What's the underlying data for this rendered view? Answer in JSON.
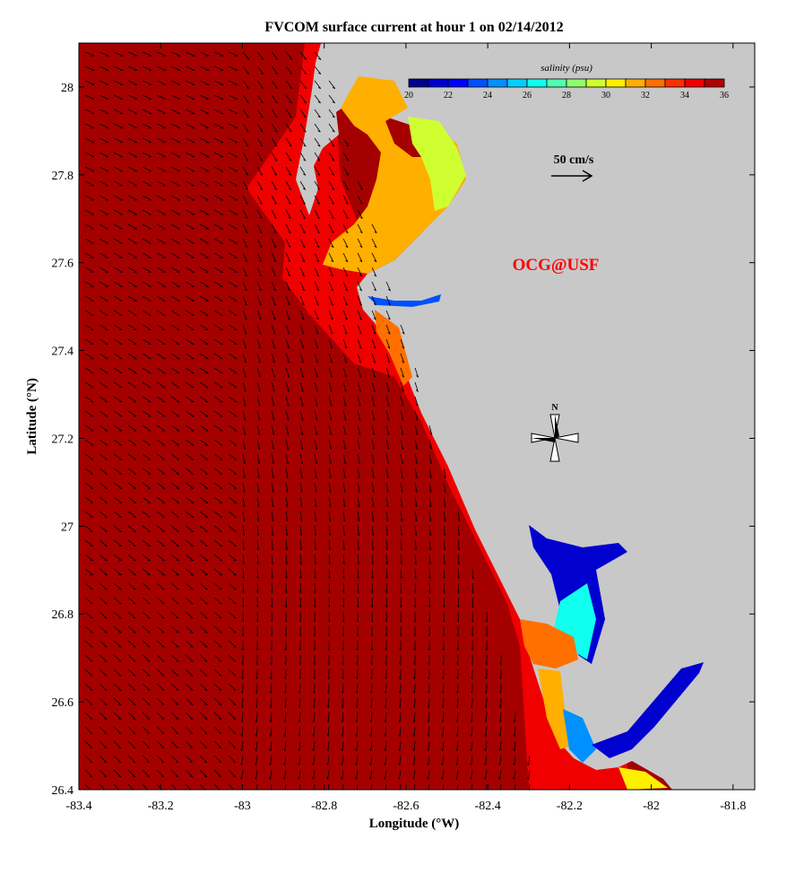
{
  "title": "FVCOM surface current at hour 1 on 02/14/2012",
  "xlabel": "Longitude (°W)",
  "ylabel": "Latitude (°N)",
  "x_ticks": [
    "-83.4",
    "-83.2",
    "-83",
    "-82.8",
    "-82.6",
    "-82.4",
    "-82.2",
    "-82",
    "-81.8"
  ],
  "x_tick_values": [
    -83.4,
    -83.2,
    -83.0,
    -82.8,
    -82.6,
    -82.4,
    -82.2,
    -82.0,
    -81.8
  ],
  "y_ticks": [
    "28",
    "27.8",
    "27.6",
    "27.4",
    "27.2",
    "27",
    "26.8",
    "26.6",
    "26.4"
  ],
  "y_tick_values": [
    28.0,
    27.8,
    27.6,
    27.4,
    27.2,
    27.0,
    26.8,
    26.6,
    26.4
  ],
  "lon_range": [
    -83.4,
    -81.747
  ],
  "lat_range": [
    26.4,
    28.1
  ],
  "colorbar": {
    "label": "salinity (psu)",
    "ticks": [
      "20",
      "22",
      "24",
      "26",
      "28",
      "30",
      "32",
      "34",
      "36"
    ],
    "range": [
      20,
      36
    ],
    "colors": [
      "#00008f",
      "#0000cf",
      "#0000ff",
      "#0050ff",
      "#0090ff",
      "#00cfff",
      "#10ffef",
      "#50ffaf",
      "#90ff6f",
      "#cfff30",
      "#ffef00",
      "#ffaf00",
      "#ff7000",
      "#ff3000",
      "#ef0000",
      "#af0000"
    ]
  },
  "scale_arrow_label": "50 cm/s",
  "watermark": "OCG@USF",
  "north_label": "N",
  "colors": {
    "land": "#c8c8c8",
    "offshore": "#a50000",
    "nearshore": "#f00000",
    "watermark": "#ff0000"
  }
}
